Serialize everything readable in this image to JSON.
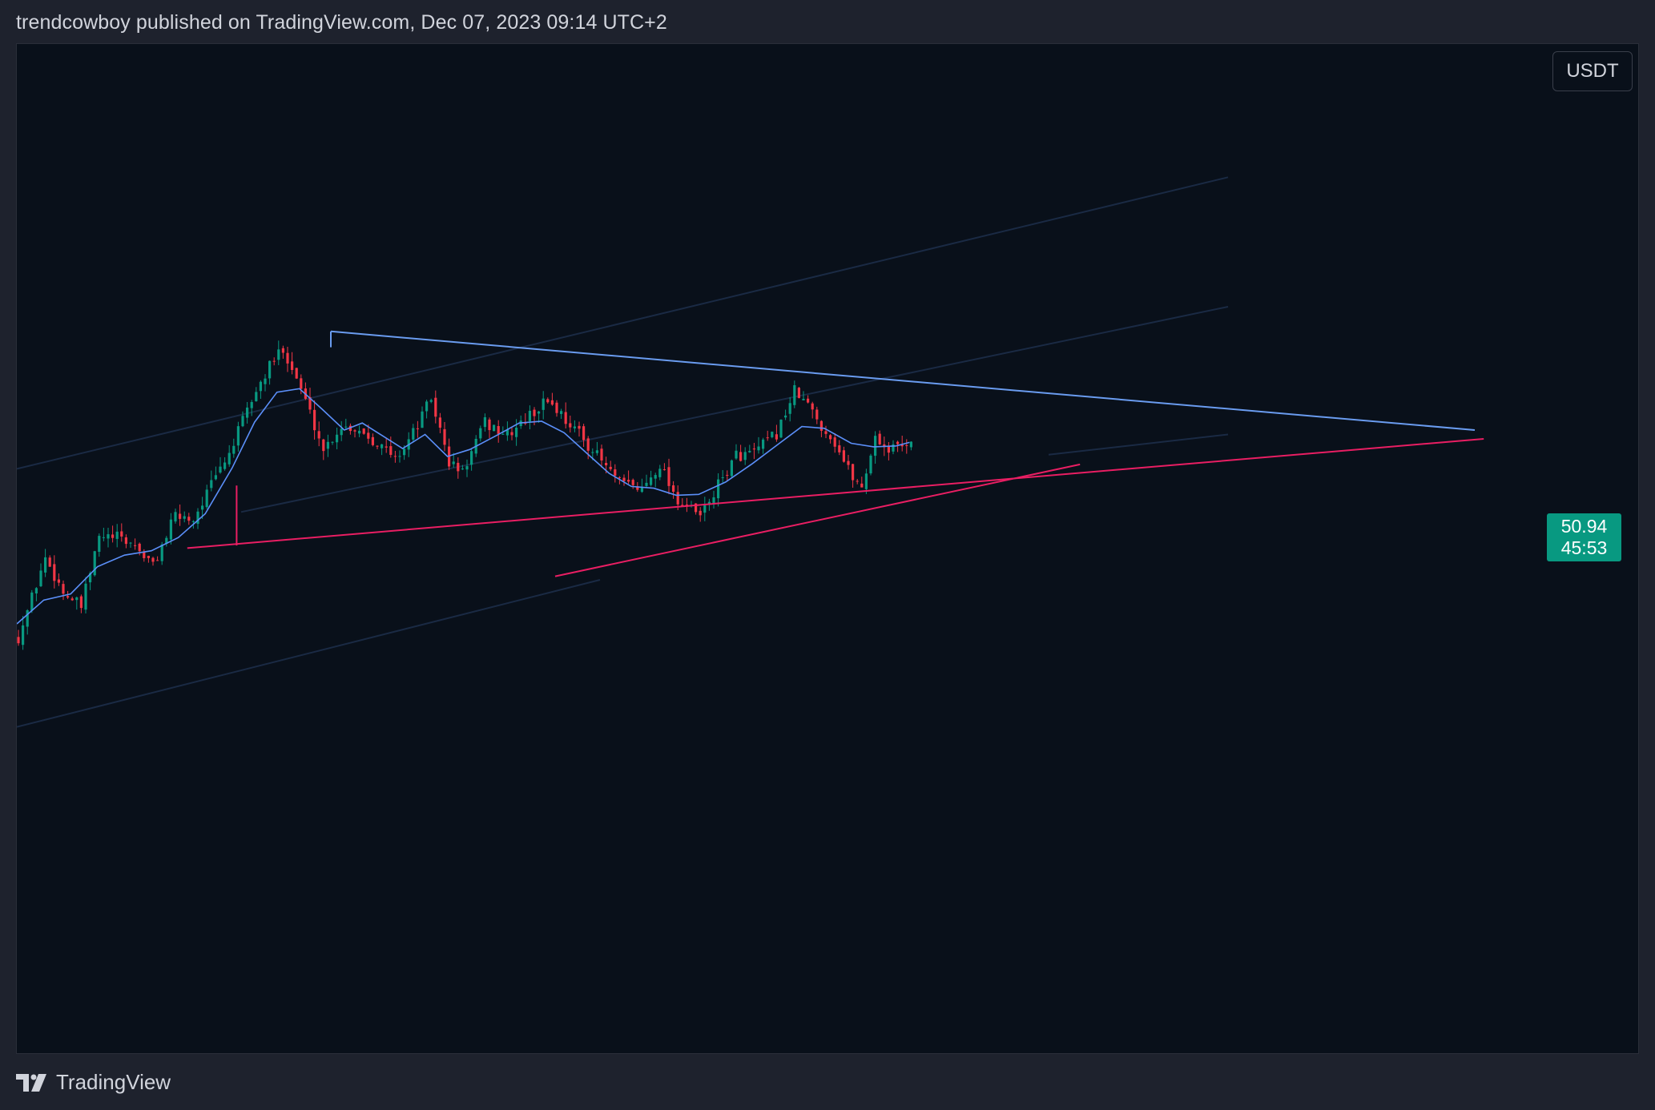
{
  "header": {
    "text": "trendcowboy published on TradingView.com, Dec 07, 2023 09:14 UTC+2"
  },
  "toolbar": {
    "currency_label": "USDT"
  },
  "price_label": {
    "price": "50.94",
    "countdown": "45:53",
    "color": "#089981"
  },
  "footer": {
    "brand": "TradingView",
    "logo_icon": "tradingview-logo-icon"
  },
  "colors": {
    "background": "#09101a",
    "up_candle": "#089981",
    "down_candle": "#f23645",
    "moving_average": "#5b8ff9",
    "resistance_line": "#6a9cf0",
    "support_line": "#e91e63",
    "channel_lines": "#1a2a44"
  },
  "chart_data": {
    "type": "candlestick",
    "title": "",
    "xlabel": "",
    "ylabel": "",
    "ylim": [
      0,
      100
    ],
    "last_price": 50.94,
    "candles_close_path": [
      [
        0,
        28.5
      ],
      [
        6,
        37.5
      ],
      [
        10,
        33.6
      ],
      [
        14,
        31.9
      ],
      [
        18,
        39.8
      ],
      [
        22,
        39.8
      ],
      [
        26,
        38.9
      ],
      [
        30,
        36.6
      ],
      [
        35,
        42.3
      ],
      [
        39,
        41.9
      ],
      [
        43,
        45.8
      ],
      [
        47,
        49.4
      ],
      [
        52,
        55.4
      ],
      [
        56,
        59.2
      ],
      [
        59,
        61.4
      ],
      [
        63,
        56.7
      ],
      [
        68,
        49.8
      ],
      [
        72,
        52.5
      ],
      [
        76,
        52.1
      ],
      [
        80,
        50.6
      ],
      [
        84,
        48.7
      ],
      [
        88,
        51.7
      ],
      [
        92,
        55.6
      ],
      [
        96,
        48.3
      ],
      [
        99,
        47.2
      ],
      [
        104,
        52.8
      ],
      [
        109,
        51.4
      ],
      [
        114,
        53.6
      ],
      [
        118,
        55.5
      ],
      [
        121,
        53.8
      ],
      [
        125,
        51.6
      ],
      [
        129,
        49.1
      ],
      [
        134,
        46.0
      ],
      [
        139,
        45.3
      ],
      [
        143,
        48.2
      ],
      [
        147,
        44.0
      ],
      [
        152,
        42.2
      ],
      [
        156,
        45.7
      ],
      [
        160,
        49.1
      ],
      [
        164,
        49.4
      ],
      [
        169,
        51.6
      ],
      [
        173,
        56.4
      ],
      [
        176,
        54.8
      ],
      [
        179,
        52.5
      ],
      [
        182,
        50.6
      ],
      [
        185,
        47.5
      ],
      [
        188,
        45.4
      ],
      [
        191,
        51.3
      ],
      [
        194,
        49.7
      ],
      [
        199,
        50.9
      ]
    ],
    "moving_average_path": [
      [
        0,
        30.0
      ],
      [
        6,
        32.7
      ],
      [
        12,
        33.4
      ],
      [
        18,
        36.5
      ],
      [
        24,
        37.8
      ],
      [
        30,
        38.3
      ],
      [
        36,
        39.8
      ],
      [
        42,
        42.5
      ],
      [
        48,
        47.7
      ],
      [
        53,
        52.9
      ],
      [
        58,
        56.3
      ],
      [
        63,
        56.7
      ],
      [
        68,
        54.4
      ],
      [
        73,
        52.0
      ],
      [
        77,
        52.8
      ],
      [
        82,
        51.2
      ],
      [
        86,
        49.9
      ],
      [
        91,
        51.5
      ],
      [
        96,
        49.0
      ],
      [
        101,
        49.8
      ],
      [
        107,
        51.4
      ],
      [
        112,
        52.8
      ],
      [
        117,
        53.0
      ],
      [
        122,
        51.7
      ],
      [
        127,
        49.4
      ],
      [
        132,
        47.1
      ],
      [
        137,
        45.6
      ],
      [
        142,
        45.4
      ],
      [
        147,
        44.6
      ],
      [
        152,
        44.7
      ],
      [
        158,
        46.1
      ],
      [
        164,
        48.2
      ],
      [
        170,
        50.5
      ],
      [
        175,
        52.4
      ],
      [
        180,
        52.2
      ],
      [
        186,
        50.5
      ],
      [
        191,
        50.1
      ],
      [
        196,
        50.2
      ],
      [
        199,
        50.6
      ]
    ],
    "drawings": [
      {
        "name": "descending-resistance",
        "from": [
          70,
          63.2
        ],
        "to": [
          325,
          52.0
        ]
      },
      {
        "name": "ascending-support-long",
        "from": [
          38,
          38.6
        ],
        "to": [
          327,
          51.0
        ]
      },
      {
        "name": "ascending-support-short",
        "from": [
          120,
          35.4
        ],
        "to": [
          237,
          48.1
        ]
      },
      {
        "name": "support-anchor-stem",
        "from": [
          49,
          38.9
        ],
        "to": [
          49,
          45.7
        ]
      },
      {
        "name": "resistance-anchor-stem",
        "from": [
          70,
          63.2
        ],
        "to": [
          70,
          61.4
        ]
      },
      {
        "name": "channel-upper",
        "from": [
          0,
          47.6
        ],
        "to": [
          270,
          80.7
        ]
      },
      {
        "name": "channel-middle",
        "from": [
          50,
          42.7
        ],
        "to": [
          270,
          66.0
        ]
      },
      {
        "name": "channel-middle-2",
        "from": [
          230,
          49.2
        ],
        "to": [
          270,
          51.5
        ]
      },
      {
        "name": "channel-lower",
        "from": [
          0,
          18.3
        ],
        "to": [
          130,
          35.0
        ]
      }
    ]
  }
}
